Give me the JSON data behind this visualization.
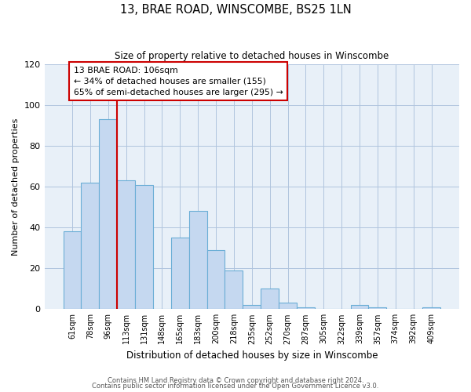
{
  "title": "13, BRAE ROAD, WINSCOMBE, BS25 1LN",
  "subtitle": "Size of property relative to detached houses in Winscombe",
  "xlabel": "Distribution of detached houses by size in Winscombe",
  "ylabel": "Number of detached properties",
  "bar_labels": [
    "61sqm",
    "78sqm",
    "96sqm",
    "113sqm",
    "131sqm",
    "148sqm",
    "165sqm",
    "183sqm",
    "200sqm",
    "218sqm",
    "235sqm",
    "252sqm",
    "270sqm",
    "287sqm",
    "305sqm",
    "322sqm",
    "339sqm",
    "357sqm",
    "374sqm",
    "392sqm",
    "409sqm"
  ],
  "bar_values": [
    38,
    62,
    93,
    63,
    61,
    0,
    35,
    48,
    29,
    19,
    2,
    10,
    3,
    1,
    0,
    0,
    2,
    1,
    0,
    0,
    1
  ],
  "bar_color": "#c5d8f0",
  "bar_edge_color": "#6baed6",
  "ylim": [
    0,
    120
  ],
  "yticks": [
    0,
    20,
    40,
    60,
    80,
    100,
    120
  ],
  "vline_x": 2.5,
  "vline_color": "#cc0000",
  "annotation_line1": "13 BRAE ROAD: 106sqm",
  "annotation_line2": "← 34% of detached houses are smaller (155)",
  "annotation_line3": "65% of semi-detached houses are larger (295) →",
  "annotation_box_color": "#ffffff",
  "annotation_box_edge": "#cc0000",
  "footer1": "Contains HM Land Registry data © Crown copyright and database right 2024.",
  "footer2": "Contains public sector information licensed under the Open Government Licence v3.0.",
  "bg_color": "#ffffff",
  "plot_bg_color": "#e8f0f8",
  "grid_color": "#b0c4de"
}
